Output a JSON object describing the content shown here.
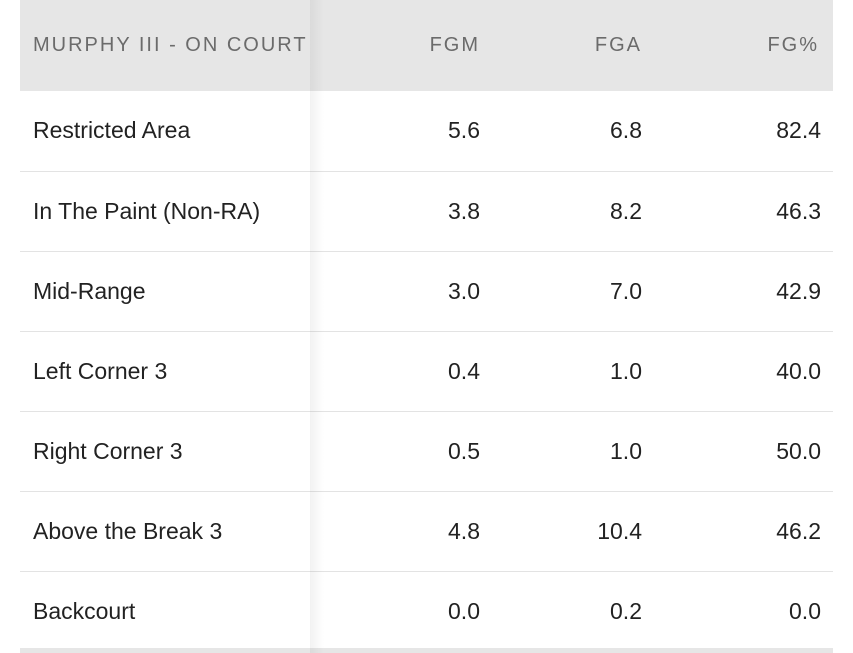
{
  "table": {
    "headers": {
      "name": "MURPHY III - ON COURT",
      "fgm": "FGM",
      "fga": "FGA",
      "fgp": "FG%"
    },
    "rows": [
      {
        "zone": "Restricted Area",
        "fgm": "5.6",
        "fga": "6.8",
        "fgp": "82.4"
      },
      {
        "zone": "In The Paint (Non-RA)",
        "fgm": "3.8",
        "fga": "8.2",
        "fgp": "46.3"
      },
      {
        "zone": "Mid-Range",
        "fgm": "3.0",
        "fga": "7.0",
        "fgp": "42.9"
      },
      {
        "zone": "Left Corner 3",
        "fgm": "0.4",
        "fga": "1.0",
        "fgp": "40.0"
      },
      {
        "zone": "Right Corner 3",
        "fgm": "0.5",
        "fga": "1.0",
        "fgp": "50.0"
      },
      {
        "zone": "Above the Break 3",
        "fgm": "4.8",
        "fga": "10.4",
        "fgp": "46.2"
      },
      {
        "zone": "Backcourt",
        "fgm": "0.0",
        "fga": "0.2",
        "fgp": "0.0"
      }
    ]
  },
  "colors": {
    "header_bg": "#e6e6e6",
    "header_text": "#6b6b6b",
    "body_text": "#222222",
    "row_divider": "#e3e3e3"
  }
}
